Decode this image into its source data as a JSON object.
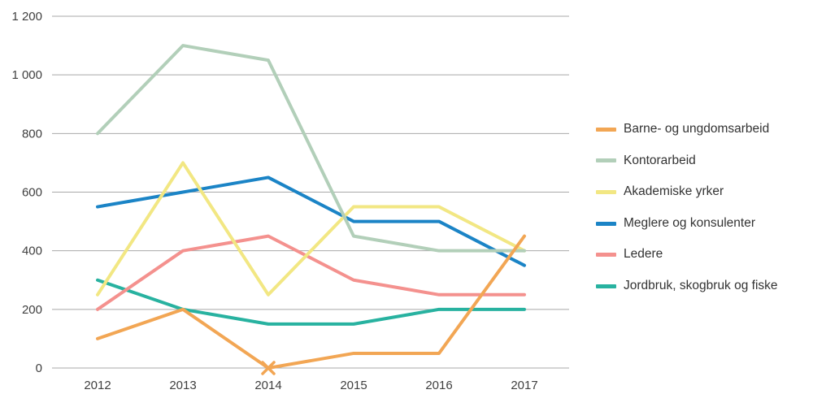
{
  "chart_data": {
    "type": "line",
    "title": "",
    "xlabel": "",
    "ylabel": "",
    "x": [
      "2012",
      "2013",
      "2014",
      "2015",
      "2016",
      "2017"
    ],
    "ylim": [
      0,
      1200
    ],
    "ytick_step": 200,
    "ytick_labels": [
      "0",
      "200",
      "400",
      "600",
      "800",
      "1 000",
      "1 200"
    ],
    "grid": true,
    "legend_position": "right",
    "gridline_color": "#a9a9a9",
    "series": [
      {
        "name": "Barne- og ungdomsarbeid",
        "color": "#F2A654",
        "values": [
          100,
          200,
          0,
          50,
          50,
          450
        ],
        "marker": {
          "x_index": 2,
          "value": 0,
          "shape": "x"
        }
      },
      {
        "name": "Kontorarbeid",
        "color": "#B2CFB9",
        "values": [
          800,
          1100,
          1050,
          450,
          400,
          400
        ]
      },
      {
        "name": "Akademiske yrker",
        "color": "#F2E783",
        "values": [
          250,
          700,
          250,
          550,
          550,
          400
        ]
      },
      {
        "name": "Meglere og konsulenter",
        "color": "#1B84C6",
        "values": [
          550,
          600,
          650,
          500,
          500,
          350
        ]
      },
      {
        "name": "Ledere",
        "color": "#F4918E",
        "values": [
          200,
          400,
          450,
          300,
          250,
          250
        ]
      },
      {
        "name": "Jordbruk, skogbruk og fiske",
        "color": "#28B2A0",
        "values": [
          300,
          200,
          150,
          150,
          200,
          200
        ]
      }
    ]
  }
}
